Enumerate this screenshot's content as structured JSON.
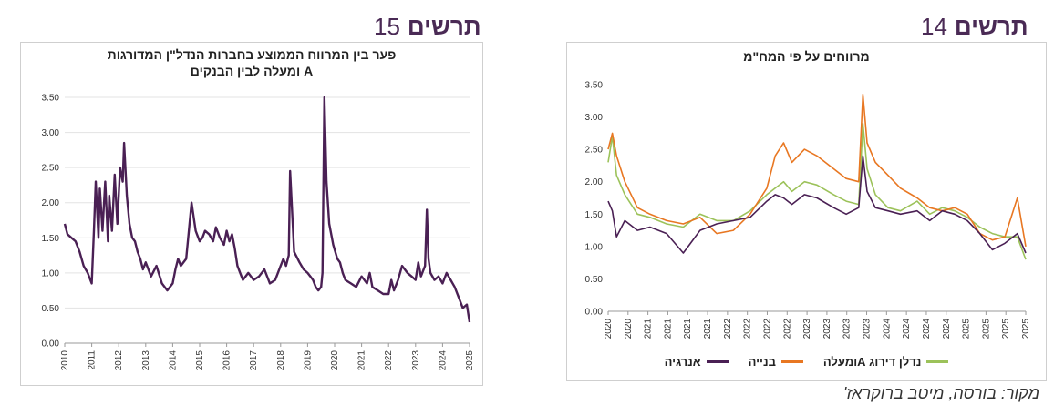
{
  "figures": {
    "left": {
      "word": "תרשים",
      "number": "15"
    },
    "right": {
      "word": "תרשים",
      "number": "14"
    }
  },
  "source": "מקור: בורסה, מיטב ברוקראז'",
  "colors": {
    "purple": "#4a2054",
    "orange": "#e87722",
    "green": "#9cc25a",
    "grid": "#e3e3e3"
  },
  "chart_data": [
    {
      "type": "line",
      "title_lines": [
        "פער בין המרווח הממוצע בחברות הנדל\"ן המדורגות",
        "A ומעלה לבין הבנקים"
      ],
      "xlim": [
        2010,
        2025
      ],
      "ylim": [
        0,
        3.5
      ],
      "yticks": [
        "0.00",
        "0.50",
        "1.00",
        "1.50",
        "2.00",
        "2.50",
        "3.00",
        "3.50"
      ],
      "xticks": [
        "2010",
        "2011",
        "2012",
        "2013",
        "2014",
        "2015",
        "2016",
        "2017",
        "2018",
        "2019",
        "2020",
        "2021",
        "2022",
        "2023",
        "2024",
        "2025"
      ],
      "grid": true,
      "series": [
        {
          "color": "purple",
          "x": [
            2010.0,
            2010.1,
            2010.25,
            2010.4,
            2010.55,
            2010.7,
            2010.85,
            2011.0,
            2011.08,
            2011.15,
            2011.25,
            2011.3,
            2011.4,
            2011.5,
            2011.6,
            2011.65,
            2011.75,
            2011.85,
            2011.95,
            2012.05,
            2012.15,
            2012.2,
            2012.3,
            2012.4,
            2012.5,
            2012.6,
            2012.7,
            2012.8,
            2012.9,
            2013.0,
            2013.2,
            2013.4,
            2013.6,
            2013.8,
            2014.0,
            2014.1,
            2014.2,
            2014.3,
            2014.5,
            2014.7,
            2014.85,
            2014.95,
            2015.0,
            2015.1,
            2015.2,
            2015.35,
            2015.5,
            2015.6,
            2015.75,
            2015.9,
            2016.0,
            2016.1,
            2016.2,
            2016.3,
            2016.4,
            2016.5,
            2016.6,
            2016.8,
            2017.0,
            2017.2,
            2017.4,
            2017.6,
            2017.8,
            2017.9,
            2018.0,
            2018.1,
            2018.2,
            2018.3,
            2018.35,
            2018.5,
            2018.7,
            2018.85,
            2019.0,
            2019.1,
            2019.2,
            2019.3,
            2019.4,
            2019.5,
            2019.55,
            2019.62,
            2019.7,
            2019.8,
            2019.95,
            2020.1,
            2020.2,
            2020.3,
            2020.4,
            2020.6,
            2020.8,
            2021.0,
            2021.2,
            2021.3,
            2021.4,
            2021.6,
            2021.8,
            2022.0,
            2022.1,
            2022.2,
            2022.35,
            2022.5,
            2022.7,
            2022.85,
            2023.0,
            2023.1,
            2023.2,
            2023.35,
            2023.42,
            2023.48,
            2023.55,
            2023.7,
            2023.85,
            2024.0,
            2024.15,
            2024.3,
            2024.45,
            2024.6,
            2024.75,
            2024.9,
            2025.0
          ],
          "y": [
            1.7,
            1.55,
            1.5,
            1.45,
            1.3,
            1.1,
            1.0,
            0.85,
            1.6,
            2.3,
            1.5,
            2.2,
            1.6,
            2.3,
            1.45,
            2.1,
            1.6,
            2.4,
            1.7,
            2.5,
            2.3,
            2.85,
            2.1,
            1.7,
            1.5,
            1.45,
            1.3,
            1.2,
            1.05,
            1.15,
            0.95,
            1.1,
            0.85,
            0.75,
            0.85,
            1.05,
            1.2,
            1.1,
            1.2,
            2.0,
            1.6,
            1.5,
            1.45,
            1.5,
            1.6,
            1.55,
            1.45,
            1.65,
            1.5,
            1.4,
            1.6,
            1.45,
            1.55,
            1.35,
            1.1,
            1.0,
            0.9,
            1.0,
            0.9,
            0.95,
            1.05,
            0.85,
            0.9,
            1.0,
            1.1,
            1.2,
            1.1,
            1.25,
            2.45,
            1.3,
            1.15,
            1.05,
            1.0,
            0.95,
            0.9,
            0.8,
            0.75,
            0.8,
            1.0,
            3.5,
            2.3,
            1.7,
            1.4,
            1.2,
            1.15,
            1.0,
            0.9,
            0.85,
            0.8,
            0.95,
            0.85,
            1.0,
            0.8,
            0.75,
            0.7,
            0.7,
            0.9,
            0.75,
            0.9,
            1.1,
            1.0,
            0.95,
            0.9,
            1.15,
            0.95,
            1.1,
            1.9,
            1.2,
            1.0,
            0.9,
            0.95,
            0.85,
            1.0,
            0.9,
            0.8,
            0.65,
            0.5,
            0.55,
            0.3
          ]
        }
      ]
    },
    {
      "type": "line",
      "title_lines": [
        "מרווחים על פי המח\"מ"
      ],
      "xlim": [
        2020,
        2025
      ],
      "ylim": [
        0,
        3.5
      ],
      "yticks": [
        "0.00",
        "0.50",
        "1.00",
        "1.50",
        "2.00",
        "2.50",
        "3.00",
        "3.50"
      ],
      "xticks": [
        "2020",
        "2020",
        "2021",
        "2021",
        "2021",
        "2021",
        "2022",
        "2022",
        "2022",
        "2022",
        "2023",
        "2023",
        "2023",
        "2023",
        "2024",
        "2024",
        "2024",
        "2024",
        "2025",
        "2025",
        "2025",
        "2025"
      ],
      "grid": false,
      "legend": "bottom",
      "series": [
        {
          "name": "נדלן דירוג Aומעלה",
          "color": "green",
          "x": [
            2020.0,
            2020.05,
            2020.1,
            2020.2,
            2020.35,
            2020.5,
            2020.7,
            2020.9,
            2021.1,
            2021.3,
            2021.5,
            2021.7,
            2021.9,
            2022.0,
            2022.1,
            2022.2,
            2022.35,
            2022.5,
            2022.7,
            2022.85,
            2023.0,
            2023.05,
            2023.1,
            2023.2,
            2023.35,
            2023.5,
            2023.7,
            2023.85,
            2024.0,
            2024.15,
            2024.3,
            2024.45,
            2024.6,
            2024.75,
            2024.9,
            2025.0
          ],
          "y": [
            2.3,
            2.7,
            2.1,
            1.8,
            1.5,
            1.45,
            1.35,
            1.3,
            1.5,
            1.4,
            1.4,
            1.55,
            1.8,
            1.9,
            2.0,
            1.85,
            2.0,
            1.95,
            1.8,
            1.7,
            1.65,
            2.9,
            2.2,
            1.8,
            1.6,
            1.55,
            1.7,
            1.5,
            1.6,
            1.55,
            1.45,
            1.3,
            1.2,
            1.15,
            1.15,
            0.8
          ]
        },
        {
          "name": "בנייה",
          "color": "orange",
          "x": [
            2020.0,
            2020.05,
            2020.1,
            2020.2,
            2020.35,
            2020.5,
            2020.7,
            2020.9,
            2021.1,
            2021.3,
            2021.5,
            2021.7,
            2021.9,
            2022.0,
            2022.1,
            2022.2,
            2022.35,
            2022.5,
            2022.7,
            2022.85,
            2023.0,
            2023.05,
            2023.1,
            2023.2,
            2023.35,
            2023.5,
            2023.7,
            2023.85,
            2024.0,
            2024.15,
            2024.3,
            2024.45,
            2024.6,
            2024.75,
            2024.9,
            2025.0
          ],
          "y": [
            2.5,
            2.75,
            2.4,
            2.0,
            1.6,
            1.5,
            1.4,
            1.35,
            1.45,
            1.2,
            1.25,
            1.5,
            1.9,
            2.4,
            2.6,
            2.3,
            2.5,
            2.4,
            2.2,
            2.05,
            2.0,
            3.35,
            2.6,
            2.3,
            2.1,
            1.9,
            1.75,
            1.6,
            1.55,
            1.6,
            1.5,
            1.2,
            1.1,
            1.15,
            1.75,
            1.0
          ]
        },
        {
          "name": "אנרגיה",
          "color": "purple",
          "x": [
            2020.0,
            2020.05,
            2020.1,
            2020.2,
            2020.35,
            2020.5,
            2020.7,
            2020.9,
            2021.1,
            2021.3,
            2021.5,
            2021.7,
            2021.9,
            2022.0,
            2022.1,
            2022.2,
            2022.35,
            2022.5,
            2022.7,
            2022.85,
            2023.0,
            2023.05,
            2023.1,
            2023.2,
            2023.35,
            2023.5,
            2023.7,
            2023.85,
            2024.0,
            2024.15,
            2024.3,
            2024.45,
            2024.6,
            2024.75,
            2024.9,
            2025.0
          ],
          "y": [
            1.7,
            1.55,
            1.15,
            1.4,
            1.25,
            1.3,
            1.2,
            0.9,
            1.25,
            1.35,
            1.4,
            1.45,
            1.7,
            1.8,
            1.75,
            1.65,
            1.8,
            1.75,
            1.6,
            1.5,
            1.6,
            2.4,
            1.85,
            1.6,
            1.55,
            1.5,
            1.55,
            1.4,
            1.55,
            1.5,
            1.4,
            1.2,
            0.95,
            1.05,
            1.2,
            0.9
          ]
        }
      ]
    }
  ]
}
